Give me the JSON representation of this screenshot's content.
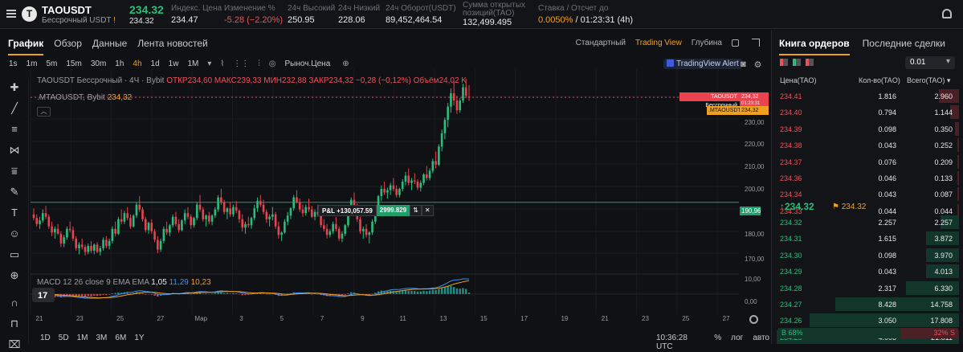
{
  "header": {
    "symbol": "TAOUSDT",
    "logo_letter": "T",
    "sub_label": "Бессрочный USDT",
    "last_price": "234.32",
    "last_price_small": "234.32",
    "stats": [
      {
        "label": "Индекс. Цена",
        "value": "234.47"
      },
      {
        "label": "Изменение %",
        "value": "-5.28 (−2.20%)"
      },
      {
        "label": "24ч Высокий",
        "value": "250.95"
      },
      {
        "label": "24ч Низкий",
        "value": "228.06"
      },
      {
        "label": "24ч Оборот(USDT)",
        "value": "89,452,464.54"
      },
      {
        "label": "Сумма открытых позиций(TAO)",
        "value": "132,499.495"
      },
      {
        "label": "Ставка / Отсчет до",
        "value_rate": "0.0050%",
        "value_time": "/ 01:23:31 (4h)"
      }
    ]
  },
  "chart_tabs": [
    "График",
    "Обзор",
    "Данные",
    "Лента новостей"
  ],
  "chart_modes": [
    "Стандартный",
    "Trading View",
    "Глубина"
  ],
  "timeframes": [
    "1s",
    "1m",
    "5m",
    "15m",
    "30m",
    "1h",
    "4h",
    "1d",
    "1w",
    "1M"
  ],
  "price_type": "Рыноч.Цена",
  "tv_alert": "TradingView Alert",
  "legend": {
    "ohlc_prefix": "TAOUSDT Бессрочный · 4Ч · Bybit",
    "ohlc_values": "ОТКР234,60 МАКС239,33 МИН232,88 ЗАКР234,32 −0,28 (−0,12%) Объём24,02 K",
    "mta_label": ".MTAOUSDT, Bybit",
    "mta_value": "234,32",
    "macd_label": "MACD 12 26 close 9 EMA EMA",
    "macd_v1": "1,05",
    "macd_v2": "11,29",
    "macd_v3": "10,23"
  },
  "price_labels": {
    "last_title": "TAOUSDT Бессрочный",
    "last_value": "234,32",
    "last_countdown": "01:23:31",
    "mta_title": ".MTAOUSDT",
    "mta_value": "234,32",
    "horizontal_line": "190,96"
  },
  "position_line": {
    "pnl": "P&L +130,057.59",
    "qty": "2999.829",
    "arrows": "⇅",
    "close": "✕"
  },
  "yaxis_ticks": [
    "230,00",
    "220,00",
    "210,00",
    "200,00",
    "180,00",
    "170,00",
    "10,00",
    "0,00"
  ],
  "xaxis_ticks": [
    "21",
    "23",
    "25",
    "27",
    "Мар",
    "3",
    "5",
    "7",
    "9",
    "11",
    "13",
    "15",
    "17",
    "19",
    "21",
    "23",
    "25",
    "27"
  ],
  "ranges": [
    "1D",
    "5D",
    "1M",
    "3M",
    "6M",
    "1Y"
  ],
  "bottom_right": {
    "time": "10:36:28 UTC",
    "pct": "%",
    "log": "лог",
    "auto": "авто"
  },
  "chart_data": {
    "type": "candlestick",
    "ylim": [
      165,
      243
    ],
    "macd_ylim": [
      -6,
      13
    ],
    "horizontal_line": 190.96,
    "candles": [
      [
        186.0,
        188.5,
        183.5,
        184.5
      ],
      [
        184.5,
        186.0,
        181.0,
        182.0
      ],
      [
        182.0,
        185.0,
        180.0,
        183.5
      ],
      [
        183.5,
        188.0,
        182.5,
        186.5
      ],
      [
        186.5,
        189.5,
        184.0,
        185.0
      ],
      [
        185.0,
        186.0,
        180.0,
        181.0
      ],
      [
        181.0,
        183.0,
        177.0,
        178.5
      ],
      [
        178.5,
        181.0,
        176.0,
        180.0
      ],
      [
        180.0,
        182.0,
        177.5,
        178.0
      ],
      [
        178.0,
        179.0,
        172.5,
        174.0
      ],
      [
        174.0,
        177.5,
        172.5,
        176.5
      ],
      [
        176.5,
        181.0,
        175.5,
        180.0
      ],
      [
        180.0,
        183.0,
        178.5,
        179.5
      ],
      [
        179.5,
        181.0,
        175.0,
        176.0
      ],
      [
        176.0,
        177.0,
        171.0,
        172.0
      ],
      [
        172.0,
        174.5,
        169.5,
        173.5
      ],
      [
        173.5,
        176.0,
        171.5,
        172.5
      ],
      [
        172.5,
        173.5,
        169.0,
        170.5
      ],
      [
        170.5,
        174.0,
        169.5,
        173.0
      ],
      [
        173.0,
        175.0,
        170.0,
        171.0
      ],
      [
        171.0,
        174.0,
        169.5,
        173.5
      ],
      [
        173.5,
        174.5,
        170.0,
        170.5
      ],
      [
        170.5,
        173.0,
        169.0,
        172.0
      ],
      [
        172.0,
        176.5,
        171.0,
        175.5
      ],
      [
        175.5,
        177.0,
        172.0,
        173.0
      ],
      [
        173.0,
        176.0,
        171.5,
        175.0
      ],
      [
        175.0,
        181.0,
        174.0,
        180.0
      ],
      [
        180.0,
        183.0,
        177.0,
        178.0
      ],
      [
        178.0,
        185.0,
        177.5,
        184.0
      ],
      [
        184.0,
        188.0,
        182.0,
        183.0
      ],
      [
        183.0,
        187.5,
        182.0,
        186.5
      ],
      [
        186.5,
        189.0,
        183.5,
        184.5
      ],
      [
        184.5,
        186.0,
        180.0,
        181.0
      ],
      [
        181.0,
        186.0,
        180.5,
        185.5
      ],
      [
        185.5,
        191.0,
        184.5,
        190.0
      ],
      [
        190.0,
        193.5,
        187.0,
        188.0
      ],
      [
        188.0,
        189.0,
        183.0,
        184.0
      ],
      [
        184.0,
        185.0,
        178.5,
        179.5
      ],
      [
        179.5,
        183.0,
        178.0,
        182.5
      ],
      [
        182.5,
        184.0,
        178.0,
        179.0
      ],
      [
        179.0,
        180.0,
        174.5,
        175.5
      ],
      [
        175.5,
        177.0,
        170.0,
        171.5
      ],
      [
        171.5,
        176.0,
        170.5,
        175.0
      ],
      [
        175.0,
        181.0,
        174.0,
        180.0
      ],
      [
        180.0,
        183.0,
        177.5,
        178.5
      ],
      [
        178.5,
        182.0,
        177.0,
        181.5
      ],
      [
        181.5,
        186.0,
        180.5,
        185.0
      ],
      [
        185.0,
        187.0,
        181.0,
        182.0
      ],
      [
        182.0,
        184.0,
        178.5,
        179.5
      ],
      [
        179.5,
        184.0,
        179.0,
        183.5
      ],
      [
        183.5,
        188.0,
        182.0,
        186.5
      ],
      [
        186.5,
        189.0,
        184.0,
        185.0
      ],
      [
        185.0,
        186.0,
        180.0,
        181.5
      ],
      [
        181.5,
        185.0,
        180.5,
        184.5
      ],
      [
        184.5,
        191.0,
        183.5,
        190.0
      ],
      [
        190.0,
        194.0,
        187.0,
        188.0
      ],
      [
        188.0,
        189.0,
        183.0,
        184.0
      ],
      [
        184.0,
        186.0,
        181.0,
        185.5
      ],
      [
        185.5,
        187.0,
        182.0,
        183.0
      ],
      [
        183.0,
        186.0,
        181.5,
        185.5
      ],
      [
        185.5,
        189.0,
        184.5,
        188.0
      ],
      [
        188.0,
        194.0,
        187.0,
        193.0
      ],
      [
        193.0,
        196.5,
        190.0,
        191.0
      ],
      [
        191.0,
        192.0,
        186.0,
        187.0
      ],
      [
        187.0,
        189.0,
        184.0,
        188.5
      ],
      [
        188.5,
        191.0,
        185.0,
        186.0
      ],
      [
        186.0,
        190.0,
        185.0,
        189.0
      ],
      [
        189.0,
        191.5,
        186.5,
        187.5
      ],
      [
        187.5,
        188.0,
        182.5,
        184.0
      ],
      [
        184.0,
        186.0,
        179.0,
        180.5
      ],
      [
        180.5,
        183.0,
        178.0,
        182.0
      ],
      [
        182.0,
        185.0,
        180.5,
        181.5
      ],
      [
        181.5,
        185.0,
        180.0,
        184.5
      ],
      [
        184.5,
        190.0,
        183.5,
        188.5
      ],
      [
        188.5,
        193.0,
        187.0,
        191.5
      ],
      [
        191.5,
        194.0,
        189.0,
        190.0
      ],
      [
        190.0,
        192.0,
        186.0,
        187.0
      ],
      [
        187.0,
        188.0,
        182.5,
        184.0
      ],
      [
        184.0,
        186.0,
        181.0,
        185.0
      ],
      [
        185.0,
        189.0,
        183.5,
        186.0
      ],
      [
        186.0,
        187.0,
        180.0,
        181.0
      ],
      [
        181.0,
        183.0,
        176.0,
        177.5
      ],
      [
        177.5,
        179.0,
        175.0,
        178.5
      ],
      [
        178.5,
        184.0,
        178.0,
        183.0
      ],
      [
        183.0,
        187.0,
        181.5,
        185.5
      ],
      [
        185.5,
        189.0,
        184.0,
        188.5
      ],
      [
        188.5,
        194.0,
        187.5,
        193.0
      ],
      [
        193.0,
        196.0,
        190.5,
        191.0
      ],
      [
        191.0,
        192.5,
        187.0,
        188.0
      ],
      [
        188.0,
        190.0,
        185.0,
        186.5
      ],
      [
        186.5,
        190.0,
        185.5,
        189.0
      ],
      [
        189.0,
        192.5,
        187.0,
        188.0
      ],
      [
        188.0,
        189.5,
        184.5,
        185.0
      ],
      [
        185.0,
        188.0,
        183.5,
        187.0
      ],
      [
        187.0,
        190.0,
        185.0,
        186.0
      ],
      [
        186.0,
        187.0,
        180.5,
        181.5
      ],
      [
        181.5,
        184.0,
        179.0,
        180.0
      ],
      [
        180.0,
        182.0,
        176.0,
        177.5
      ],
      [
        177.5,
        180.0,
        176.5,
        179.0
      ],
      [
        179.0,
        183.0,
        178.0,
        182.0
      ],
      [
        182.0,
        185.0,
        179.0,
        180.0
      ],
      [
        180.0,
        181.0,
        175.0,
        176.0
      ],
      [
        176.0,
        179.0,
        174.5,
        178.0
      ],
      [
        178.0,
        182.0,
        177.0,
        181.5
      ],
      [
        181.5,
        188.0,
        180.5,
        187.0
      ],
      [
        187.0,
        193.0,
        186.0,
        192.0
      ],
      [
        192.0,
        195.0,
        188.5,
        189.5
      ],
      [
        189.5,
        190.5,
        183.0,
        184.0
      ],
      [
        184.0,
        185.0,
        178.0,
        179.0
      ],
      [
        179.0,
        181.0,
        176.0,
        180.0
      ],
      [
        180.0,
        182.0,
        176.5,
        177.5
      ],
      [
        177.5,
        179.0,
        174.0,
        178.5
      ],
      [
        178.5,
        184.0,
        177.5,
        183.0
      ],
      [
        183.0,
        188.0,
        182.0,
        187.0
      ],
      [
        187.0,
        194.0,
        186.0,
        193.5
      ],
      [
        193.5,
        198.0,
        191.5,
        196.5
      ],
      [
        196.5,
        199.5,
        194.0,
        195.0
      ],
      [
        195.0,
        197.0,
        192.5,
        196.0
      ],
      [
        196.0,
        199.0,
        194.0,
        198.0
      ],
      [
        198.0,
        201.0,
        195.5,
        196.5
      ],
      [
        196.5,
        198.0,
        193.0,
        194.0
      ],
      [
        194.0,
        197.0,
        193.0,
        196.5
      ],
      [
        196.5,
        200.5,
        195.5,
        199.5
      ],
      [
        199.5,
        203.5,
        198.0,
        202.0
      ],
      [
        202.0,
        205.0,
        198.0,
        199.0
      ],
      [
        199.0,
        201.0,
        196.0,
        200.0
      ],
      [
        200.0,
        203.0,
        198.5,
        199.5
      ],
      [
        199.5,
        200.5,
        196.0,
        197.0
      ],
      [
        197.0,
        200.0,
        195.5,
        199.0
      ],
      [
        199.0,
        203.0,
        198.0,
        202.5
      ],
      [
        202.5,
        206.0,
        200.0,
        201.0
      ],
      [
        201.0,
        205.0,
        200.0,
        204.0
      ],
      [
        204.0,
        209.0,
        203.0,
        208.0
      ],
      [
        208.0,
        212.0,
        205.0,
        206.5
      ],
      [
        206.5,
        215.0,
        206.0,
        214.0
      ],
      [
        214.0,
        221.0,
        212.0,
        219.5
      ],
      [
        219.5,
        226.0,
        217.0,
        225.0
      ],
      [
        225.0,
        232.0,
        222.0,
        230.5
      ],
      [
        230.5,
        238.0,
        228.0,
        236.0
      ],
      [
        236.0,
        241.0,
        231.0,
        233.0
      ],
      [
        233.0,
        235.0,
        227.5,
        229.0
      ],
      [
        229.0,
        234.0,
        228.0,
        233.0
      ],
      [
        233.0,
        240.0,
        232.0,
        238.5
      ],
      [
        238.5,
        242.0,
        234.0,
        235.0
      ],
      [
        234.6,
        239.33,
        232.88,
        234.32
      ]
    ],
    "macd_hist": [
      -1.5,
      -1.8,
      -2.2,
      -2.0,
      -1.6,
      -2.0,
      -2.6,
      -2.4,
      -2.1,
      -2.5,
      -2.0,
      -1.4,
      -1.2,
      -1.5,
      -2.0,
      -1.8,
      -1.6,
      -1.9,
      -1.4,
      -1.6,
      -1.2,
      -1.4,
      -1.0,
      -0.6,
      -0.8,
      -0.4,
      0.5,
      0.8,
      1.2,
      1.0,
      1.3,
      1.0,
      0.4,
      0.8,
      1.5,
      1.3,
      0.6,
      -0.4,
      0.0,
      -0.5,
      -1.2,
      -1.8,
      -1.2,
      -0.3,
      -0.5,
      0.2,
      0.9,
      0.6,
      0.0,
      0.5,
      1.0,
      0.7,
      0.0,
      0.5,
      1.2,
      1.0,
      0.3,
      0.5,
      0.2,
      0.5,
      0.9,
      1.5,
      1.3,
      0.6,
      0.8,
      0.4,
      0.7,
      0.5,
      -0.2,
      -0.9,
      -0.6,
      -0.5,
      -0.2,
      0.5,
      1.1,
      0.9,
      0.4,
      -0.2,
      0.0,
      0.1,
      -0.6,
      -1.3,
      -1.1,
      -0.3,
      0.2,
      0.6,
      1.3,
      1.1,
      0.6,
      0.3,
      0.6,
      0.4,
      -0.1,
      0.2,
      0.0,
      -0.7,
      -1.0,
      -1.5,
      -1.2,
      -0.6,
      -0.8,
      -1.5,
      -1.2,
      -0.5,
      0.5,
      1.4,
      1.2,
      0.4,
      -0.6,
      -0.7,
      -0.9,
      -0.7,
      0.2,
      1.0,
      2.0,
      2.6,
      2.4,
      2.3,
      2.5,
      2.2,
      1.8,
      2.0,
      2.4,
      2.8,
      2.4,
      2.3,
      2.2,
      1.9,
      2.0,
      2.4,
      2.2,
      2.6,
      3.2,
      3.0,
      3.6,
      4.4,
      5.0,
      5.6,
      6.0,
      5.2,
      4.2,
      4.0,
      4.4,
      3.8,
      1.05
    ]
  }
}
